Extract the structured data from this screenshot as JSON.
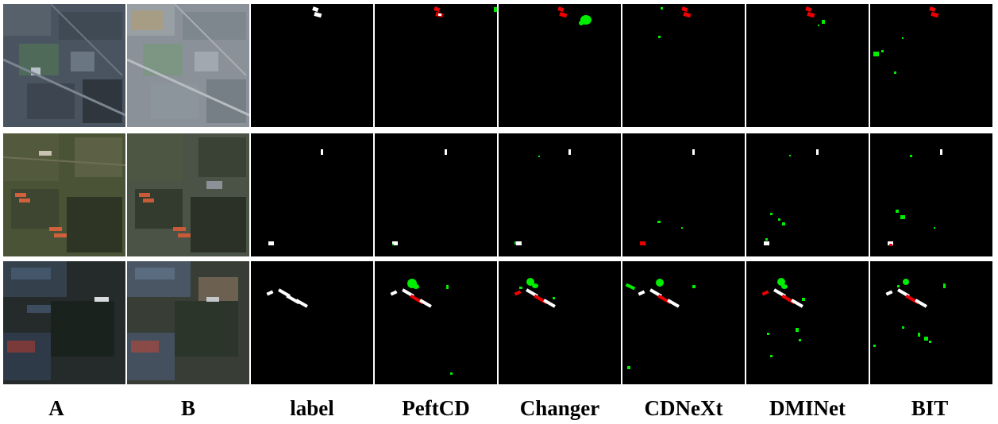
{
  "columns": [
    "A",
    "B",
    "label",
    "PeftCD",
    "Changer",
    "CDNeXt",
    "DMINet",
    "BIT"
  ],
  "colors": {
    "change_correct": "#ffffff",
    "false_positive": "#00ee00",
    "false_negative": "#ee0000",
    "background": "#000000"
  },
  "rows": [
    {
      "id": "row-1",
      "scene": "industrial-urban"
    },
    {
      "id": "row-2",
      "scene": "farmland"
    },
    {
      "id": "row-3",
      "scene": "factory-forest"
    }
  ]
}
